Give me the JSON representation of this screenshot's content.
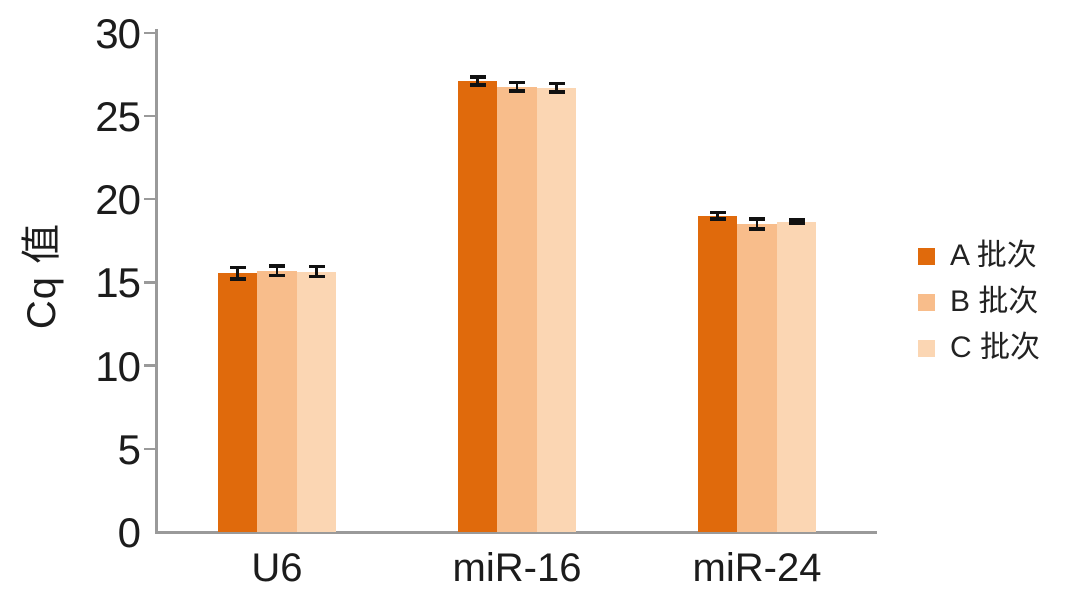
{
  "chart_data": {
    "type": "bar",
    "title": "",
    "ylabel": "Cq 值",
    "xlabel": "",
    "ylim": [
      0,
      30
    ],
    "yticks": [
      0,
      5,
      10,
      15,
      20,
      25,
      30
    ],
    "grid": false,
    "legend_position": "right",
    "categories": [
      "U6",
      "miR-16",
      "miR-24"
    ],
    "series": [
      {
        "name": "A 批次",
        "color": "#E06A0C",
        "values": [
          15.55,
          27.1,
          19.0
        ],
        "errors": [
          0.35,
          0.25,
          0.2
        ]
      },
      {
        "name": "B 批次",
        "color": "#F8BD8B",
        "values": [
          15.7,
          26.75,
          18.5
        ],
        "errors": [
          0.3,
          0.25,
          0.3
        ]
      },
      {
        "name": "C 批次",
        "color": "#FBD6B3",
        "values": [
          15.65,
          26.7,
          18.65
        ],
        "errors": [
          0.3,
          0.25,
          0.1
        ]
      }
    ],
    "error_bar_color": "#111111",
    "axis_color": "#9a9a9a",
    "text_color": "#1c1c1c"
  }
}
